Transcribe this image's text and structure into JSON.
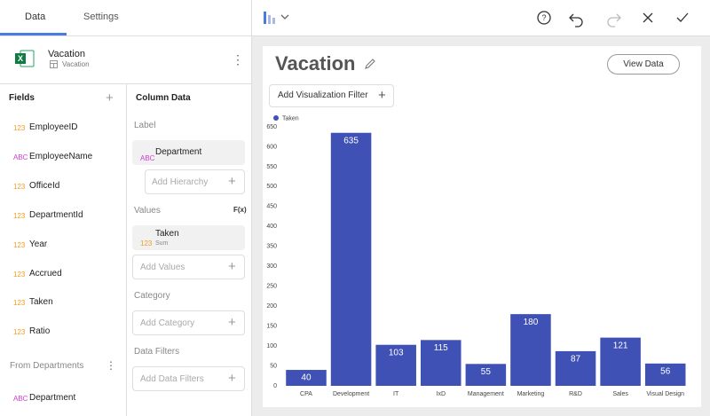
{
  "tabs": [
    "Data",
    "Settings"
  ],
  "dataset": {
    "name": "Vacation",
    "table": "Vacation"
  },
  "fields": {
    "title": "Fields",
    "items": [
      {
        "type": "123",
        "name": "EmployeeID"
      },
      {
        "type": "ABC",
        "name": "EmployeeName"
      },
      {
        "type": "123",
        "name": "OfficeId"
      },
      {
        "type": "123",
        "name": "DepartmentId"
      },
      {
        "type": "123",
        "name": "Year"
      },
      {
        "type": "123",
        "name": "Accrued"
      },
      {
        "type": "123",
        "name": "Taken"
      },
      {
        "type": "123",
        "name": "Ratio"
      }
    ]
  },
  "from_departments": {
    "title": "From Departments",
    "items": [
      {
        "type": "ABC",
        "name": "Department"
      }
    ]
  },
  "column_data": {
    "title": "Column Data",
    "label": {
      "title": "Label",
      "item": {
        "type": "ABC",
        "name": "Department"
      },
      "add": "Add Hierarchy"
    },
    "values": {
      "title": "Values",
      "function": "F(x)",
      "item": {
        "type": "123",
        "name": "Taken",
        "aggregation": "Sum"
      },
      "add": "Add Values"
    },
    "category": {
      "title": "Category",
      "add": "Add Category"
    },
    "data_filters": {
      "title": "Data Filters",
      "add": "Add Data Filters"
    }
  },
  "visualization": {
    "title": "Vacation",
    "view_data": "View Data",
    "add_filter": "Add Visualization Filter"
  },
  "chart_data": {
    "type": "bar",
    "categories": [
      "CPA",
      "Development",
      "IT",
      "IxD",
      "Management",
      "Marketing",
      "R&D",
      "Sales",
      "Visual Design"
    ],
    "series": [
      {
        "name": "Taken",
        "color": "#3f51b5",
        "values": [
          40,
          635,
          103,
          115,
          55,
          180,
          87,
          121,
          56
        ]
      }
    ],
    "ylim": [
      0,
      650
    ],
    "yticks": [
      0,
      50,
      100,
      150,
      200,
      250,
      300,
      350,
      400,
      450,
      500,
      550,
      600,
      650
    ]
  }
}
